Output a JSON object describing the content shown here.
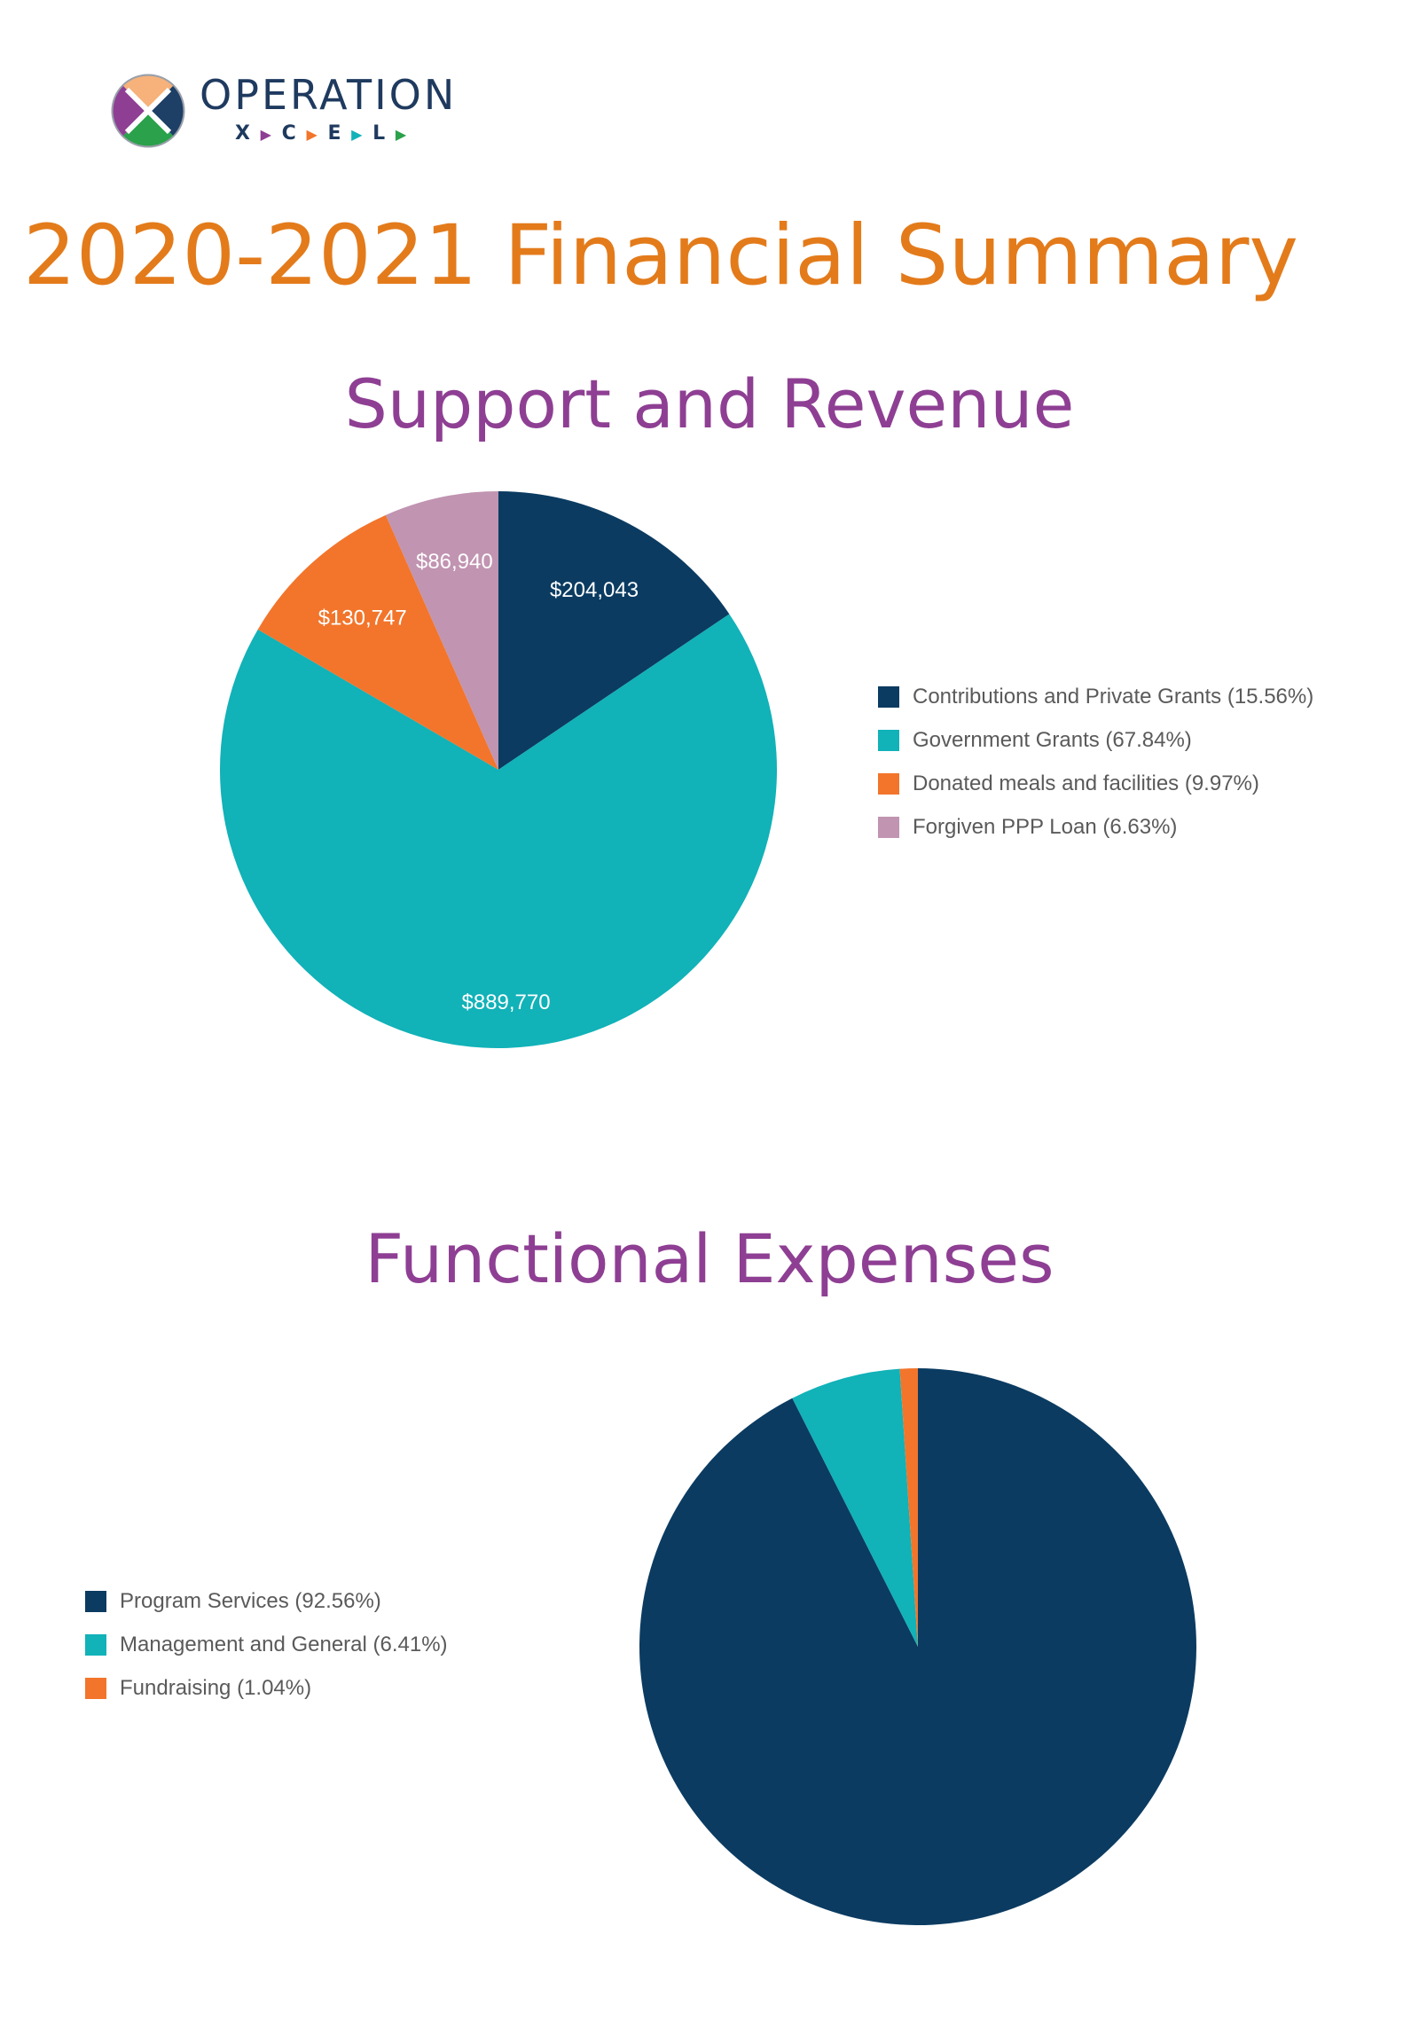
{
  "logo": {
    "word": "OPERATION",
    "sub": [
      "X",
      "C",
      "E",
      "L"
    ]
  },
  "page": {
    "title": "2020-2021 Financial Summary"
  },
  "colors": {
    "navy": "#0b3b61",
    "teal": "#11b2b8",
    "orange": "#f2752b",
    "mauve": "#c194b1",
    "title_orange": "#e37b1b",
    "purple": "#8e3f93"
  },
  "chart_data": [
    {
      "type": "pie",
      "title": "Support and Revenue",
      "slices": [
        {
          "label": "Contributions and Private Grants (15.56%)",
          "value": 204043,
          "value_label": "$204,043",
          "color": "#0b3b61"
        },
        {
          "label": "Government Grants (67.84%)",
          "value": 889770,
          "value_label": "$889,770",
          "color": "#11b2b8"
        },
        {
          "label": "Donated meals and facilities (9.97%)",
          "value": 130747,
          "value_label": "$130,747",
          "color": "#f2752b"
        },
        {
          "label": "Forgiven PPP Loan (6.63%)",
          "value": 86940,
          "value_label": "$86,940",
          "color": "#c194b1"
        }
      ],
      "legend": "right"
    },
    {
      "type": "pie",
      "title": "Functional Expenses",
      "slices": [
        {
          "label": "Program Services (92.56%)",
          "value": 92.56,
          "color": "#0b3b61"
        },
        {
          "label": "Management and General (6.41%)",
          "value": 6.41,
          "color": "#11b2b8"
        },
        {
          "label": "Fundraising (1.04%)",
          "value": 1.04,
          "color": "#f2752b"
        }
      ],
      "legend": "left"
    }
  ]
}
